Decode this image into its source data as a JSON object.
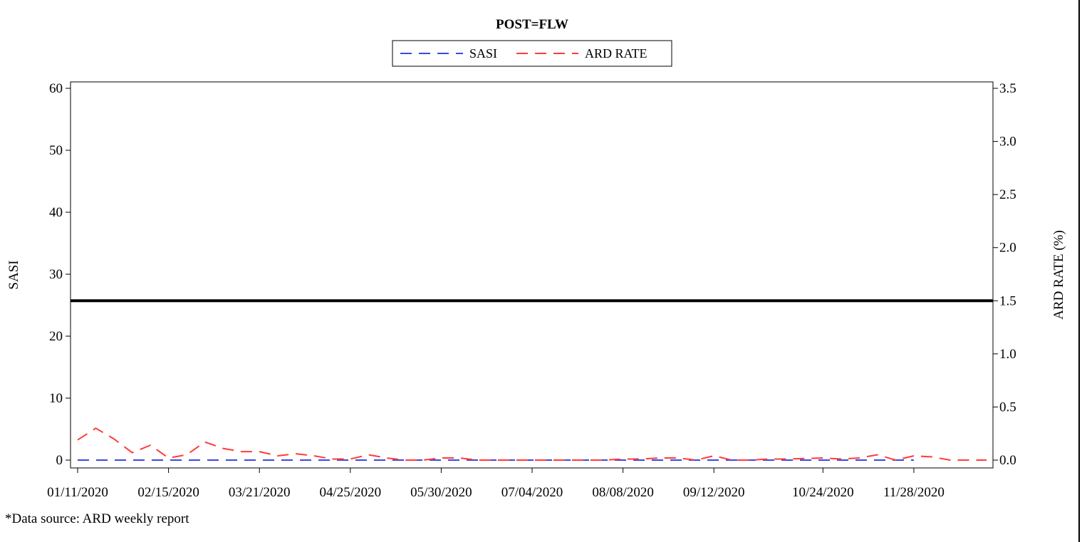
{
  "chart_data": {
    "type": "line",
    "title": "POST=FLW",
    "ylabel": "SASI",
    "y2label": "ARD RATE (%)",
    "xlabel": "",
    "legend": {
      "placement": "top-center",
      "entries": [
        {
          "name": "SASI",
          "color": "#3b48e0"
        },
        {
          "name": "ARD RATE",
          "color": "#ff3b3b"
        }
      ]
    },
    "x_ticks": [
      "01/11/2020",
      "02/15/2020",
      "03/21/2020",
      "04/25/2020",
      "05/30/2020",
      "07/04/2020",
      "08/08/2020",
      "09/12/2020",
      "10/24/2020",
      "11/28/2020"
    ],
    "x_tick_dates": [
      "2020-01-11",
      "2020-02-15",
      "2020-03-21",
      "2020-04-25",
      "2020-05-30",
      "2020-07-04",
      "2020-08-08",
      "2020-09-12",
      "2020-10-24",
      "2020-11-28"
    ],
    "xlim": [
      "2020-01-11",
      "2020-12-26"
    ],
    "ylim": [
      0,
      60
    ],
    "y_ticks": [
      0,
      10,
      20,
      30,
      40,
      50,
      60
    ],
    "y2lim": [
      0,
      3.5
    ],
    "y2_ticks": [
      "0.0",
      "0.5",
      "1.0",
      "1.5",
      "2.0",
      "2.5",
      "3.0",
      "3.5"
    ],
    "reference_line": {
      "axis": "y2",
      "value": 1.5,
      "color": "#000000"
    },
    "grid": false,
    "series": [
      {
        "name": "SASI",
        "axis": "y",
        "color": "#3b48e0",
        "dash": "dashed",
        "x": [
          "2020-01-11",
          "2020-02-01",
          "2020-03-01",
          "2020-04-01",
          "2020-05-01",
          "2020-06-01",
          "2020-07-01",
          "2020-08-01",
          "2020-09-01",
          "2020-10-01",
          "2020-11-01",
          "2020-11-28"
        ],
        "values": [
          0,
          0,
          0,
          0,
          0,
          0,
          0,
          0,
          0,
          0,
          0,
          0
        ]
      },
      {
        "name": "ARD RATE",
        "axis": "y2",
        "color": "#ff3b3b",
        "dash": "dashed",
        "x": [
          "2020-01-11",
          "2020-01-18",
          "2020-01-25",
          "2020-02-01",
          "2020-02-08",
          "2020-02-15",
          "2020-02-22",
          "2020-02-29",
          "2020-03-07",
          "2020-03-14",
          "2020-03-21",
          "2020-03-28",
          "2020-04-04",
          "2020-04-11",
          "2020-04-18",
          "2020-04-25",
          "2020-05-02",
          "2020-05-09",
          "2020-05-16",
          "2020-05-23",
          "2020-05-30",
          "2020-06-06",
          "2020-06-13",
          "2020-06-20",
          "2020-06-27",
          "2020-07-04",
          "2020-07-11",
          "2020-07-18",
          "2020-07-25",
          "2020-08-01",
          "2020-08-08",
          "2020-08-15",
          "2020-08-22",
          "2020-08-29",
          "2020-09-05",
          "2020-09-12",
          "2020-09-19",
          "2020-09-26",
          "2020-10-03",
          "2020-10-10",
          "2020-10-24",
          "2020-10-31",
          "2020-11-07",
          "2020-11-14",
          "2020-11-21",
          "2020-11-28",
          "2020-12-05",
          "2020-12-12",
          "2020-12-19",
          "2020-12-26"
        ],
        "values": [
          0.19,
          0.3,
          0.2,
          0.07,
          0.14,
          0.02,
          0.05,
          0.17,
          0.11,
          0.08,
          0.08,
          0.04,
          0.06,
          0.04,
          0.01,
          0.01,
          0.05,
          0.02,
          0.0,
          0.0,
          0.02,
          0.02,
          0.0,
          0.0,
          0.0,
          0.0,
          0.0,
          0.0,
          0.0,
          0.0,
          0.01,
          0.01,
          0.02,
          0.02,
          0.0,
          0.04,
          0.0,
          0.0,
          0.01,
          0.01,
          0.02,
          0.01,
          0.02,
          0.05,
          0.0,
          0.04,
          0.03,
          0.0,
          0.0,
          0.0
        ]
      }
    ]
  },
  "footnote": "*Data source: ARD weekly report"
}
